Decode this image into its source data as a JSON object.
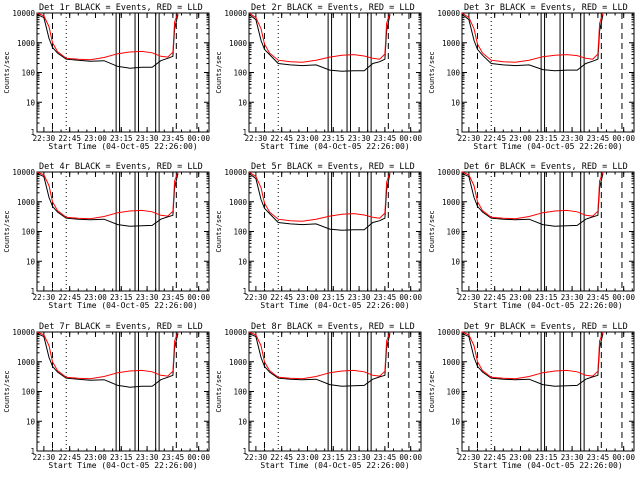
{
  "figure": {
    "xlabel": "Start Time (04-Oct-05 22:26:00)",
    "ylabel": "Counts/sec"
  },
  "colors": {
    "events": "#000000",
    "lld": "#ff0000",
    "background": "#ffffff"
  },
  "chart_data": [
    {
      "type": "line",
      "title": "Det 1r BLACK = Events, RED = LLD",
      "xlabel": "Start Time (04-Oct-05 22:26:00)",
      "ylabel": "Counts/sec",
      "yscale": "log",
      "ylim": [
        1,
        10000
      ],
      "xlim": [
        "22:26",
        "00:06"
      ],
      "xticks": [
        "22:30",
        "22:45",
        "23:00",
        "23:15",
        "23:30",
        "23:45",
        "00:00"
      ],
      "yticks": [
        "1",
        "10",
        "100",
        "1000",
        "10000"
      ],
      "solid_lines": [
        "23:12",
        "23:14",
        "23:23",
        "23:25",
        "23:35",
        "23:37"
      ],
      "dashed_lines": [
        "22:35",
        "23:47",
        "23:59"
      ],
      "dotted_lines": [
        "22:43"
      ],
      "x": [
        "22:26",
        "22:30",
        "22:33",
        "22:35",
        "22:38",
        "22:43",
        "22:50",
        "22:57",
        "23:05",
        "23:13",
        "23:20",
        "23:27",
        "23:33",
        "23:38",
        "23:42",
        "23:45",
        "23:46",
        "23:48"
      ],
      "series": [
        {
          "name": "Events",
          "values": [
            9000,
            7000,
            1400,
            700,
            450,
            280,
            260,
            240,
            250,
            160,
            140,
            150,
            150,
            250,
            300,
            350,
            3000,
            9000
          ]
        },
        {
          "name": "LLD",
          "values": [
            10000,
            8000,
            3500,
            1000,
            500,
            300,
            280,
            270,
            320,
            430,
            490,
            510,
            460,
            350,
            330,
            480,
            5000,
            10000
          ]
        }
      ]
    },
    {
      "type": "line",
      "title": "Det 2r BLACK = Events, RED = LLD",
      "xlabel": "Start Time (04-Oct-05 22:26:00)",
      "ylabel": "Counts/sec",
      "yscale": "log",
      "ylim": [
        1,
        10000
      ],
      "xlim": [
        "22:26",
        "00:06"
      ],
      "xticks": [
        "22:30",
        "22:45",
        "23:00",
        "23:15",
        "23:30",
        "23:45",
        "00:00"
      ],
      "yticks": [
        "1",
        "10",
        "100",
        "1000",
        "10000"
      ],
      "solid_lines": [
        "23:12",
        "23:14",
        "23:23",
        "23:25",
        "23:35",
        "23:37"
      ],
      "dashed_lines": [
        "22:35",
        "23:47",
        "23:59"
      ],
      "dotted_lines": [
        "22:43"
      ],
      "x": [
        "22:26",
        "22:30",
        "22:33",
        "22:35",
        "22:38",
        "22:43",
        "22:50",
        "22:57",
        "23:05",
        "23:13",
        "23:20",
        "23:27",
        "23:33",
        "23:38",
        "23:42",
        "23:45",
        "23:46",
        "23:48"
      ],
      "series": [
        {
          "name": "Events",
          "values": [
            9000,
            6000,
            1200,
            600,
            400,
            200,
            180,
            170,
            180,
            120,
            110,
            115,
            115,
            200,
            230,
            280,
            2500,
            9000
          ]
        },
        {
          "name": "LLD",
          "values": [
            10000,
            7000,
            3000,
            900,
            450,
            260,
            230,
            220,
            260,
            330,
            380,
            400,
            360,
            300,
            280,
            420,
            4500,
            10000
          ]
        }
      ]
    },
    {
      "type": "line",
      "title": "Det 3r BLACK = Events, RED = LLD",
      "xlabel": "Start Time (04-Oct-05 22:26:00)",
      "ylabel": "Counts/sec",
      "yscale": "log",
      "ylim": [
        1,
        10000
      ],
      "xlim": [
        "22:26",
        "00:06"
      ],
      "xticks": [
        "22:30",
        "22:45",
        "23:00",
        "23:15",
        "23:30",
        "23:45",
        "00:00"
      ],
      "yticks": [
        "1",
        "10",
        "100",
        "1000",
        "10000"
      ],
      "solid_lines": [
        "23:12",
        "23:14",
        "23:23",
        "23:25",
        "23:35",
        "23:37"
      ],
      "dashed_lines": [
        "22:35",
        "23:47",
        "23:59"
      ],
      "dotted_lines": [
        "22:43"
      ],
      "x": [
        "22:26",
        "22:30",
        "22:33",
        "22:35",
        "22:38",
        "22:43",
        "22:50",
        "22:57",
        "23:05",
        "23:13",
        "23:20",
        "23:27",
        "23:33",
        "23:38",
        "23:42",
        "23:45",
        "23:46",
        "23:48"
      ],
      "series": [
        {
          "name": "Events",
          "values": [
            9000,
            6000,
            1200,
            600,
            380,
            200,
            180,
            170,
            180,
            125,
            115,
            120,
            120,
            200,
            240,
            280,
            2500,
            9000
          ]
        },
        {
          "name": "LLD",
          "values": [
            10000,
            7000,
            3000,
            900,
            450,
            260,
            230,
            220,
            260,
            340,
            380,
            400,
            370,
            300,
            280,
            420,
            4500,
            10000
          ]
        }
      ]
    },
    {
      "type": "line",
      "title": "Det 4r BLACK = Events, RED = LLD",
      "xlabel": "Start Time (04-Oct-05 22:26:00)",
      "ylabel": "Counts/sec",
      "yscale": "log",
      "ylim": [
        1,
        10000
      ],
      "xlim": [
        "22:26",
        "00:06"
      ],
      "xticks": [
        "22:30",
        "22:45",
        "23:00",
        "23:15",
        "23:30",
        "23:45",
        "00:00"
      ],
      "yticks": [
        "1",
        "10",
        "100",
        "1000",
        "10000"
      ],
      "solid_lines": [
        "23:12",
        "23:14",
        "23:23",
        "23:25",
        "23:35",
        "23:37"
      ],
      "dashed_lines": [
        "22:35",
        "23:47",
        "23:59"
      ],
      "dotted_lines": [
        "22:43"
      ],
      "x": [
        "22:26",
        "22:30",
        "22:33",
        "22:35",
        "22:38",
        "22:43",
        "22:50",
        "22:57",
        "23:05",
        "23:13",
        "23:20",
        "23:27",
        "23:33",
        "23:38",
        "23:42",
        "23:45",
        "23:46",
        "23:48"
      ],
      "series": [
        {
          "name": "Events",
          "values": [
            9000,
            7000,
            1400,
            700,
            450,
            280,
            260,
            250,
            260,
            170,
            150,
            155,
            160,
            260,
            310,
            350,
            3000,
            9000
          ]
        },
        {
          "name": "LLD",
          "values": [
            10000,
            8000,
            3500,
            1000,
            500,
            300,
            280,
            270,
            320,
            430,
            490,
            510,
            460,
            350,
            330,
            480,
            5000,
            10000
          ]
        }
      ]
    },
    {
      "type": "line",
      "title": "Det 5r BLACK = Events, RED = LLD",
      "xlabel": "Start Time (04-Oct-05 22:26:00)",
      "ylabel": "Counts/sec",
      "yscale": "log",
      "ylim": [
        1,
        10000
      ],
      "xlim": [
        "22:26",
        "00:06"
      ],
      "xticks": [
        "22:30",
        "22:45",
        "23:00",
        "23:15",
        "23:30",
        "23:45",
        "00:00"
      ],
      "yticks": [
        "1",
        "10",
        "100",
        "1000",
        "10000"
      ],
      "solid_lines": [
        "23:12",
        "23:14",
        "23:23",
        "23:25",
        "23:35",
        "23:37"
      ],
      "dashed_lines": [
        "22:35",
        "23:47",
        "23:59"
      ],
      "dotted_lines": [
        "22:43"
      ],
      "x": [
        "22:26",
        "22:30",
        "22:33",
        "22:35",
        "22:38",
        "22:43",
        "22:50",
        "22:57",
        "23:05",
        "23:13",
        "23:20",
        "23:27",
        "23:33",
        "23:38",
        "23:42",
        "23:45",
        "23:46",
        "23:48"
      ],
      "series": [
        {
          "name": "Events",
          "values": [
            9000,
            6000,
            1200,
            600,
            400,
            200,
            180,
            170,
            180,
            120,
            110,
            115,
            115,
            200,
            230,
            280,
            2500,
            9000
          ]
        },
        {
          "name": "LLD",
          "values": [
            10000,
            7000,
            3000,
            900,
            450,
            260,
            230,
            220,
            260,
            330,
            380,
            400,
            360,
            300,
            280,
            420,
            4500,
            10000
          ]
        }
      ]
    },
    {
      "type": "line",
      "title": "Det 6r BLACK = Events, RED = LLD",
      "xlabel": "Start Time (04-Oct-05 22:26:00)",
      "ylabel": "Counts/sec",
      "yscale": "log",
      "ylim": [
        1,
        10000
      ],
      "xlim": [
        "22:26",
        "00:06"
      ],
      "xticks": [
        "22:30",
        "22:45",
        "23:00",
        "23:15",
        "23:30",
        "23:45",
        "00:00"
      ],
      "yticks": [
        "1",
        "10",
        "100",
        "1000",
        "10000"
      ],
      "solid_lines": [
        "23:12",
        "23:14",
        "23:23",
        "23:25",
        "23:35",
        "23:37"
      ],
      "dashed_lines": [
        "22:35",
        "23:47",
        "23:59"
      ],
      "dotted_lines": [
        "22:43"
      ],
      "x": [
        "22:26",
        "22:30",
        "22:33",
        "22:35",
        "22:38",
        "22:43",
        "22:50",
        "22:57",
        "23:05",
        "23:13",
        "23:20",
        "23:27",
        "23:33",
        "23:38",
        "23:42",
        "23:45",
        "23:46",
        "23:48"
      ],
      "series": [
        {
          "name": "Events",
          "values": [
            9000,
            7000,
            1400,
            700,
            450,
            280,
            260,
            250,
            260,
            170,
            150,
            155,
            160,
            260,
            310,
            350,
            3000,
            9000
          ]
        },
        {
          "name": "LLD",
          "values": [
            10000,
            8000,
            3500,
            1000,
            500,
            300,
            280,
            270,
            320,
            430,
            490,
            510,
            460,
            350,
            330,
            480,
            5000,
            10000
          ]
        }
      ]
    },
    {
      "type": "line",
      "title": "Det 7r BLACK = Events, RED = LLD",
      "xlabel": "Start Time (04-Oct-05 22:26:00)",
      "ylabel": "Counts/sec",
      "yscale": "log",
      "ylim": [
        1,
        10000
      ],
      "xlim": [
        "22:26",
        "00:06"
      ],
      "xticks": [
        "22:30",
        "22:45",
        "23:00",
        "23:15",
        "23:30",
        "23:45",
        "00:00"
      ],
      "yticks": [
        "1",
        "10",
        "100",
        "1000",
        "10000"
      ],
      "solid_lines": [
        "23:12",
        "23:14",
        "23:23",
        "23:25",
        "23:35",
        "23:37"
      ],
      "dashed_lines": [
        "22:35",
        "23:47",
        "23:59"
      ],
      "dotted_lines": [
        "22:43"
      ],
      "x": [
        "22:26",
        "22:30",
        "22:33",
        "22:35",
        "22:38",
        "22:43",
        "22:50",
        "22:57",
        "23:05",
        "23:13",
        "23:20",
        "23:27",
        "23:33",
        "23:38",
        "23:42",
        "23:45",
        "23:46",
        "23:48"
      ],
      "series": [
        {
          "name": "Events",
          "values": [
            9000,
            7000,
            1400,
            700,
            450,
            280,
            260,
            240,
            250,
            160,
            140,
            150,
            150,
            250,
            300,
            350,
            3000,
            9000
          ]
        },
        {
          "name": "LLD",
          "values": [
            10000,
            8000,
            3500,
            1000,
            500,
            300,
            280,
            270,
            320,
            430,
            490,
            510,
            460,
            350,
            330,
            480,
            5000,
            10000
          ]
        }
      ]
    },
    {
      "type": "line",
      "title": "Det 8r BLACK = Events, RED = LLD",
      "xlabel": "Start Time (04-Oct-05 22:26:00)",
      "ylabel": "Counts/sec",
      "yscale": "log",
      "ylim": [
        1,
        10000
      ],
      "xlim": [
        "22:26",
        "00:06"
      ],
      "xticks": [
        "22:30",
        "22:45",
        "23:00",
        "23:15",
        "23:30",
        "23:45",
        "00:00"
      ],
      "yticks": [
        "1",
        "10",
        "100",
        "1000",
        "10000"
      ],
      "solid_lines": [
        "23:12",
        "23:14",
        "23:23",
        "23:25",
        "23:35",
        "23:37"
      ],
      "dashed_lines": [
        "22:35",
        "23:47",
        "23:59"
      ],
      "dotted_lines": [
        "22:43"
      ],
      "x": [
        "22:26",
        "22:30",
        "22:33",
        "22:35",
        "22:38",
        "22:43",
        "22:50",
        "22:57",
        "23:05",
        "23:13",
        "23:20",
        "23:27",
        "23:33",
        "23:38",
        "23:42",
        "23:45",
        "23:46",
        "23:48"
      ],
      "series": [
        {
          "name": "Events",
          "values": [
            9000,
            7000,
            1400,
            700,
            450,
            280,
            260,
            250,
            260,
            170,
            150,
            155,
            160,
            260,
            310,
            350,
            3000,
            9000
          ]
        },
        {
          "name": "LLD",
          "values": [
            10000,
            8000,
            3500,
            1000,
            500,
            300,
            280,
            270,
            320,
            430,
            490,
            510,
            460,
            350,
            330,
            480,
            5000,
            10000
          ]
        }
      ]
    },
    {
      "type": "line",
      "title": "Det 9r BLACK = Events, RED = LLD",
      "xlabel": "Start Time (04-Oct-05 22:26:00)",
      "ylabel": "Counts/sec",
      "yscale": "log",
      "ylim": [
        1,
        10000
      ],
      "xlim": [
        "22:26",
        "00:06"
      ],
      "xticks": [
        "22:30",
        "22:45",
        "23:00",
        "23:15",
        "23:30",
        "23:45",
        "00:00"
      ],
      "yticks": [
        "1",
        "10",
        "100",
        "1000",
        "10000"
      ],
      "solid_lines": [
        "23:12",
        "23:14",
        "23:23",
        "23:25",
        "23:35",
        "23:37"
      ],
      "dashed_lines": [
        "22:35",
        "23:47",
        "23:59"
      ],
      "dotted_lines": [
        "22:43"
      ],
      "x": [
        "22:26",
        "22:30",
        "22:33",
        "22:35",
        "22:38",
        "22:43",
        "22:50",
        "22:57",
        "23:05",
        "23:13",
        "23:20",
        "23:27",
        "23:33",
        "23:38",
        "23:42",
        "23:45",
        "23:46",
        "23:48"
      ],
      "series": [
        {
          "name": "Events",
          "values": [
            9000,
            7000,
            1400,
            700,
            450,
            280,
            260,
            250,
            260,
            170,
            150,
            155,
            160,
            260,
            310,
            350,
            3000,
            9000
          ]
        },
        {
          "name": "LLD",
          "values": [
            10000,
            8000,
            3500,
            1000,
            500,
            300,
            280,
            270,
            320,
            430,
            490,
            510,
            460,
            350,
            330,
            480,
            5000,
            10000
          ]
        }
      ]
    }
  ]
}
